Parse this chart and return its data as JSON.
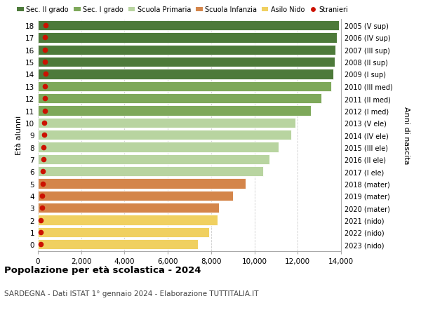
{
  "ages": [
    18,
    17,
    16,
    15,
    14,
    13,
    12,
    11,
    10,
    9,
    8,
    7,
    6,
    5,
    4,
    3,
    2,
    1,
    0
  ],
  "right_labels": [
    "2005 (V sup)",
    "2006 (IV sup)",
    "2007 (III sup)",
    "2008 (II sup)",
    "2009 (I sup)",
    "2010 (III med)",
    "2011 (II med)",
    "2012 (I med)",
    "2013 (V ele)",
    "2014 (IV ele)",
    "2015 (III ele)",
    "2016 (II ele)",
    "2017 (I ele)",
    "2018 (mater)",
    "2019 (mater)",
    "2020 (mater)",
    "2021 (nido)",
    "2022 (nido)",
    "2023 (nido)"
  ],
  "bar_values": [
    13900,
    13800,
    13750,
    13700,
    13650,
    13550,
    13100,
    12600,
    11900,
    11700,
    11100,
    10700,
    10400,
    9600,
    9000,
    8350,
    8300,
    7900,
    7400
  ],
  "stranieri_values": [
    350,
    340,
    330,
    340,
    360,
    330,
    320,
    310,
    290,
    280,
    270,
    250,
    240,
    230,
    210,
    200,
    130,
    130,
    120
  ],
  "bar_colors": [
    "#4d7a3a",
    "#4d7a3a",
    "#4d7a3a",
    "#4d7a3a",
    "#4d7a3a",
    "#7ea85a",
    "#7ea85a",
    "#7ea85a",
    "#b8d4a0",
    "#b8d4a0",
    "#b8d4a0",
    "#b8d4a0",
    "#b8d4a0",
    "#d4854a",
    "#d4854a",
    "#d4854a",
    "#f0d060",
    "#f0d060",
    "#f0d060"
  ],
  "legend_entries": [
    {
      "label": "Sec. II grado",
      "color": "#4d7a3a"
    },
    {
      "label": "Sec. I grado",
      "color": "#7ea85a"
    },
    {
      "label": "Scuola Primaria",
      "color": "#b8d4a0"
    },
    {
      "label": "Scuola Infanzia",
      "color": "#d4854a"
    },
    {
      "label": "Asilo Nido",
      "color": "#f0d060"
    },
    {
      "label": "Stranieri",
      "color": "#cc1100"
    }
  ],
  "ylabel": "Età alunni",
  "right_ylabel": "Anni di nascita",
  "title": "Popolazione per età scolastica - 2024",
  "subtitle": "SARDEGNA - Dati ISTAT 1° gennaio 2024 - Elaborazione TUTTITALIA.IT",
  "xlim": [
    0,
    14000
  ],
  "xticks": [
    0,
    2000,
    4000,
    6000,
    8000,
    10000,
    12000,
    14000
  ],
  "xtick_labels": [
    "0",
    "2,000",
    "4,000",
    "6,000",
    "8,000",
    "10,000",
    "12,000",
    "14,000"
  ],
  "bar_height": 0.82,
  "background_color": "#ffffff",
  "grid_color": "#cccccc"
}
